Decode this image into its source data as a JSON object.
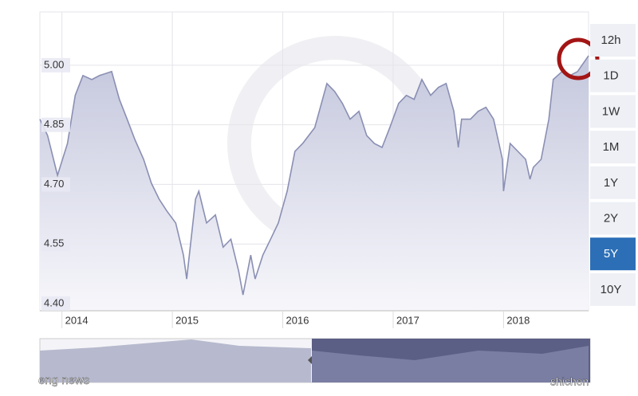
{
  "chart_data": {
    "type": "line",
    "x": [
      2013.8,
      2013.87,
      2013.96,
      2014.05,
      2014.12,
      2014.19,
      2014.27,
      2014.34,
      2014.45,
      2014.52,
      2014.59,
      2014.66,
      2014.74,
      2014.81,
      2014.88,
      2014.95,
      2015.03,
      2015.1,
      2015.13,
      2015.21,
      2015.24,
      2015.31,
      2015.39,
      2015.46,
      2015.53,
      2015.6,
      2015.64,
      2015.71,
      2015.75,
      2015.82,
      2015.89,
      2015.96,
      2016.04,
      2016.11,
      2016.18,
      2016.29,
      2016.4,
      2016.47,
      2016.54,
      2016.61,
      2016.69,
      2016.76,
      2016.83,
      2016.9,
      2016.97,
      2017.05,
      2017.12,
      2017.19,
      2017.26,
      2017.34,
      2017.41,
      2017.48,
      2017.55,
      2017.59,
      2017.62,
      2017.7,
      2017.77,
      2017.84,
      2017.91,
      2017.99,
      2018.0,
      2018.06,
      2018.13,
      2018.2,
      2018.24,
      2018.27,
      2018.34,
      2018.41,
      2018.45,
      2018.53,
      2018.6,
      2018.67,
      2018.77
    ],
    "series": [
      {
        "color": "#8a8fb3",
        "values": [
          4.864,
          4.823,
          4.723,
          4.803,
          4.924,
          4.974,
          4.964,
          4.974,
          4.984,
          4.914,
          4.864,
          4.813,
          4.763,
          4.703,
          4.663,
          4.633,
          4.603,
          4.522,
          4.462,
          4.663,
          4.683,
          4.603,
          4.623,
          4.542,
          4.562,
          4.482,
          4.422,
          4.522,
          4.462,
          4.522,
          4.562,
          4.603,
          4.683,
          4.783,
          4.803,
          4.843,
          4.954,
          4.934,
          4.904,
          4.864,
          4.884,
          4.823,
          4.803,
          4.793,
          4.843,
          4.904,
          4.924,
          4.914,
          4.964,
          4.924,
          4.944,
          4.954,
          4.884,
          4.793,
          4.864,
          4.864,
          4.884,
          4.894,
          4.864,
          4.763,
          4.683,
          4.803,
          4.783,
          4.763,
          4.713,
          4.743,
          4.763,
          4.864,
          4.964,
          4.984,
          4.974,
          4.984,
          5.024
        ]
      }
    ],
    "xlim": [
      2013.8,
      2018.77
    ],
    "xticks": [
      2014,
      2015,
      2016,
      2017,
      2018
    ],
    "ylim": [
      4.382,
      5.134
    ],
    "yticks": [
      {
        "value": 4.4,
        "label": "4.40"
      },
      {
        "value": 4.55,
        "label": "4.55"
      },
      {
        "value": 4.7,
        "label": "4.70"
      },
      {
        "value": 4.85,
        "label": "4.85"
      },
      {
        "value": 5,
        "label": "5.00"
      }
    ],
    "grid": true,
    "ranges": [
      "12h",
      "1D",
      "1W",
      "1M",
      "1Y",
      "2Y",
      "5Y",
      "10Y"
    ],
    "active_range": "5Y",
    "watermarks": [
      "eng news",
      "shichen"
    ]
  }
}
